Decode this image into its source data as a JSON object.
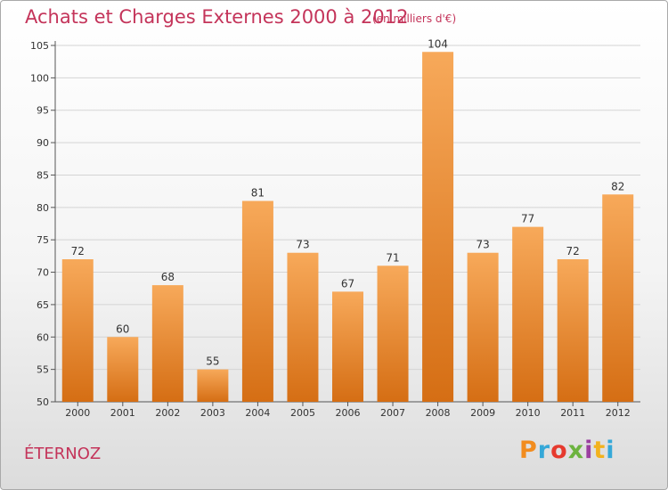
{
  "title": "Achats et Charges Externes 2000 à 2012",
  "subtitle": "(en milliers d'€)",
  "commune": "ÉTERNOZ",
  "logo": {
    "letters": [
      "P",
      "r",
      "o",
      "x",
      "i",
      "t",
      "i"
    ],
    "colors": [
      "#f28c1e",
      "#35a8d8",
      "#e63a2e",
      "#6cb33f",
      "#9b3fa0",
      "#f2b21e",
      "#35a8d8"
    ]
  },
  "colors": {
    "bar_top": "#f7a95a",
    "bar_bottom": "#d56e14",
    "title": "#c4345a"
  },
  "chart_data": {
    "type": "bar",
    "title": "Achats et Charges Externes 2000 à 2012",
    "subtitle": "(en milliers d'€)",
    "xlabel": "",
    "ylabel": "",
    "categories": [
      "2000",
      "2001",
      "2002",
      "2003",
      "2004",
      "2005",
      "2006",
      "2007",
      "2008",
      "2009",
      "2010",
      "2011",
      "2012"
    ],
    "values": [
      72,
      60,
      68,
      55,
      81,
      73,
      67,
      71,
      104,
      73,
      77,
      72,
      82
    ],
    "ylim": [
      50,
      105
    ],
    "yticks": [
      50,
      55,
      60,
      65,
      70,
      75,
      80,
      85,
      90,
      95,
      100,
      105
    ],
    "grid": true,
    "legend": "none"
  }
}
